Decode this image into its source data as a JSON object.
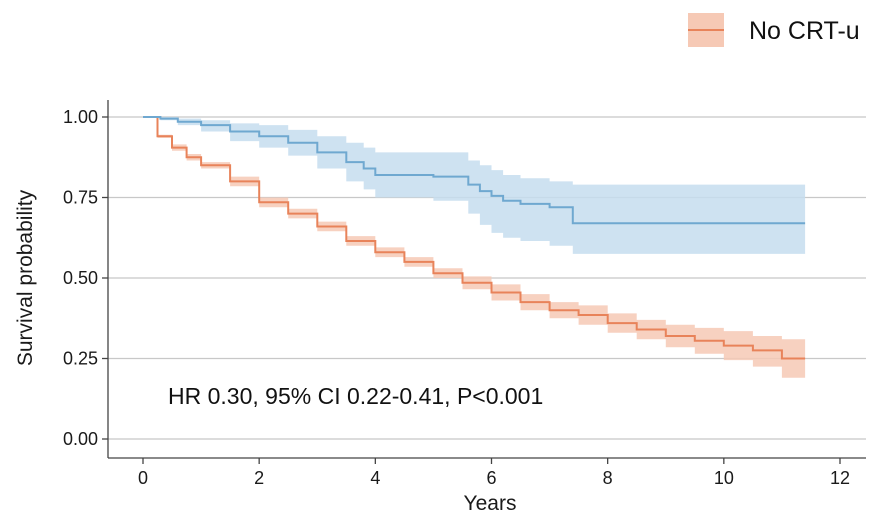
{
  "chart_data": {
    "type": "line",
    "subtype": "kaplan-meier",
    "xlabel": "Years",
    "ylabel": "Survival probability",
    "xlim": [
      0,
      12
    ],
    "ylim": [
      0,
      1
    ],
    "xticks": [
      0,
      2,
      4,
      6,
      8,
      10,
      12
    ],
    "xtick_labels": [
      "0",
      "2",
      "4",
      "6",
      "8",
      "10",
      "12"
    ],
    "yticks": [
      0,
      0.25,
      0.5,
      0.75,
      1
    ],
    "ytick_labels": [
      "0.00",
      "0.25",
      "0.50",
      "0.75",
      "1.00"
    ],
    "grid": "horizontal major gridlines",
    "legend": {
      "placement": "top-right",
      "entries": [
        "No CRT-u"
      ]
    },
    "annotation": "HR 0.30, 95% CI 0.22-0.41, P<0.001",
    "series": [
      {
        "name": "No CRT-u",
        "color": "#e8835a",
        "band_color": "#f6c9b5",
        "step": true,
        "x": [
          0,
          0.25,
          0.5,
          0.75,
          1,
          1.5,
          2,
          2.5,
          3,
          3.5,
          4,
          4.5,
          5,
          5.5,
          6,
          6.5,
          7,
          7.5,
          8,
          8.5,
          9,
          9.5,
          10,
          10.5,
          11,
          11.4
        ],
        "y": [
          1,
          0.94,
          0.905,
          0.875,
          0.85,
          0.8,
          0.735,
          0.7,
          0.66,
          0.615,
          0.58,
          0.55,
          0.515,
          0.485,
          0.455,
          0.425,
          0.4,
          0.385,
          0.36,
          0.34,
          0.32,
          0.305,
          0.29,
          0.275,
          0.25,
          0.25
        ],
        "lower": [
          1,
          0.935,
          0.895,
          0.865,
          0.84,
          0.785,
          0.72,
          0.685,
          0.645,
          0.6,
          0.565,
          0.535,
          0.5,
          0.465,
          0.43,
          0.4,
          0.375,
          0.355,
          0.33,
          0.31,
          0.285,
          0.265,
          0.245,
          0.225,
          0.19,
          0.19
        ],
        "upper": [
          1,
          0.945,
          0.915,
          0.885,
          0.86,
          0.815,
          0.75,
          0.715,
          0.675,
          0.63,
          0.595,
          0.565,
          0.53,
          0.505,
          0.48,
          0.45,
          0.425,
          0.415,
          0.39,
          0.37,
          0.355,
          0.345,
          0.335,
          0.32,
          0.31,
          0.31
        ]
      },
      {
        "color": "#6fa8d0",
        "band_color": "#c6ddef",
        "step": true,
        "x": [
          0,
          0.3,
          0.6,
          1,
          1.5,
          2,
          2.5,
          3,
          3.5,
          3.8,
          4,
          5,
          5.6,
          5.8,
          6,
          6.2,
          6.5,
          7,
          7.4,
          11.4
        ],
        "y": [
          1,
          0.995,
          0.985,
          0.975,
          0.955,
          0.94,
          0.92,
          0.89,
          0.86,
          0.84,
          0.82,
          0.815,
          0.79,
          0.77,
          0.755,
          0.74,
          0.73,
          0.72,
          0.67,
          0.67
        ],
        "lower": [
          1,
          0.99,
          0.975,
          0.955,
          0.925,
          0.905,
          0.88,
          0.84,
          0.8,
          0.775,
          0.75,
          0.74,
          0.7,
          0.665,
          0.64,
          0.625,
          0.615,
          0.6,
          0.575,
          0.575
        ],
        "upper": [
          1,
          1,
          0.995,
          0.99,
          0.98,
          0.975,
          0.96,
          0.94,
          0.92,
          0.905,
          0.89,
          0.89,
          0.865,
          0.85,
          0.835,
          0.82,
          0.81,
          0.8,
          0.79,
          0.79
        ]
      }
    ]
  }
}
